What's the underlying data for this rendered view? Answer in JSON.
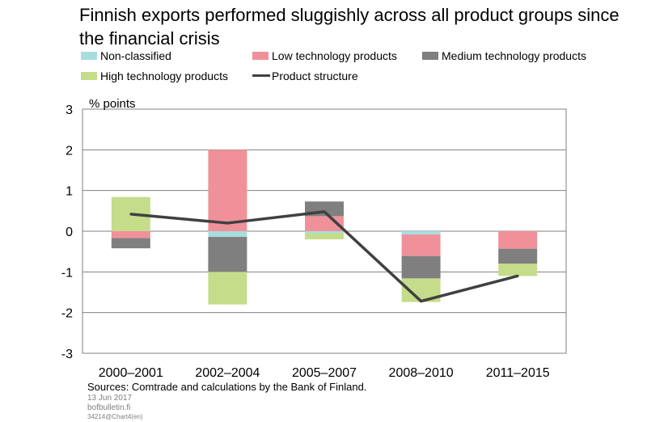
{
  "chart_data": {
    "type": "bar",
    "stacked": true,
    "title": "Finnish exports performed sluggishly across all product groups since the financial crisis",
    "ylabel": "% points",
    "ylim": [
      -3,
      3
    ],
    "yticks": [
      3,
      2,
      1,
      0,
      -1,
      -2,
      -3
    ],
    "ytick_labels": [
      "3",
      "2",
      "1",
      "0",
      "-1",
      "-2",
      "-3"
    ],
    "grid": true,
    "categories": [
      "2000–2001",
      "2002–2004",
      "2005–2007",
      "2008–2010",
      "2011–2015"
    ],
    "series": [
      {
        "name": "Non-classified",
        "kind": "bar",
        "color": "#a8dde0",
        "values": [
          0.0,
          -0.14,
          -0.05,
          -0.08,
          0.0
        ]
      },
      {
        "name": "Low technology products",
        "kind": "bar",
        "color": "#f0919a",
        "values": [
          -0.17,
          2.0,
          0.37,
          -0.53,
          -0.43
        ]
      },
      {
        "name": "Medium technology products",
        "kind": "bar",
        "color": "#7f7f7f",
        "values": [
          -0.25,
          -0.86,
          0.36,
          -0.55,
          -0.37
        ]
      },
      {
        "name": "High technology products",
        "kind": "bar",
        "color": "#c5dc8a",
        "values": [
          0.84,
          -0.8,
          -0.15,
          -0.58,
          -0.3
        ]
      },
      {
        "name": "Product structure",
        "kind": "line",
        "color": "#404040",
        "values": [
          0.42,
          0.2,
          0.48,
          -1.72,
          -1.1
        ]
      }
    ]
  },
  "footer": {
    "sources": "Sources: Comtrade and calculations by the Bank of Finland.",
    "date": "13 Jun 2017",
    "site": "bofbulletin.fi",
    "code": "34214@Chart4(en)"
  }
}
